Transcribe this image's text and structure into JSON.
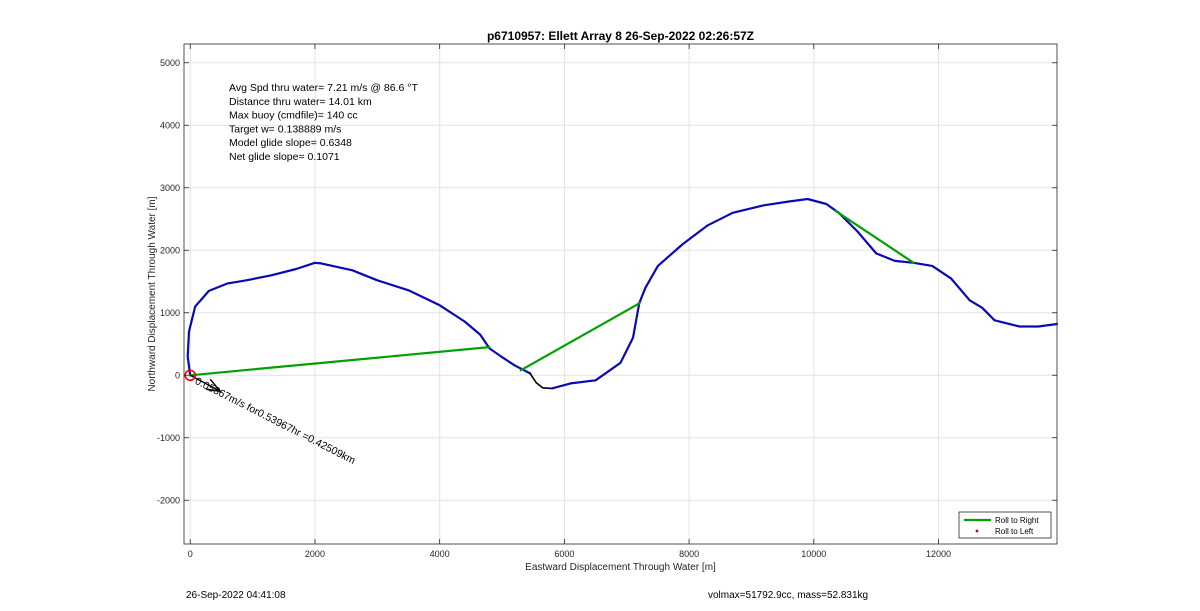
{
  "chart_data": {
    "type": "line",
    "title": "p6710957: Ellett Array 8 26-Sep-2022 02:26:57Z",
    "xlabel": "Eastward Displacement Through Water [m]",
    "ylabel": "Northward Displacement Through Water [m]",
    "xlim": [
      -100,
      13900
    ],
    "ylim": [
      -2700,
      5300
    ],
    "xticks": [
      0,
      2000,
      4000,
      6000,
      8000,
      10000,
      12000
    ],
    "xtick_labels": [
      "0",
      "2000",
      "4000",
      "6000",
      "8000",
      "10000",
      "12000"
    ],
    "yticks": [
      -2000,
      -1000,
      0,
      1000,
      2000,
      3000,
      4000,
      5000
    ],
    "ytick_labels": [
      "-2000",
      "-1000",
      "0",
      "1000",
      "2000",
      "3000",
      "4000",
      "5000"
    ],
    "grid": true,
    "legend_position": "bottom-right",
    "legend": [
      {
        "label": "Roll to Right",
        "color": "#00a000",
        "marker": "line"
      },
      {
        "label": "Roll to Left",
        "color": "#cc0000",
        "marker": "dot"
      }
    ],
    "stats": [
      "Avg Spd thru water=  7.21 m/s @  86.6 °T",
      "Distance thru water= 14.01 km",
      "Max buoy (cmdfile)= 140 cc",
      "Target w= 0.138889 m/s",
      "Model glide slope= 0.6348",
      "Net glide slope= 0.1071"
    ],
    "current_annotation": "0.05867m/s for0.53967hr =0.42509km",
    "series": [
      {
        "style": "track",
        "color": "#0a0ab4",
        "x": [
          0,
          -40,
          -20,
          80,
          300,
          600,
          900,
          1300,
          1700,
          2000,
          2100,
          2600,
          3000,
          3500,
          4000,
          4400,
          4650,
          4800,
          5000,
          5200,
          5450
        ],
        "y": [
          0,
          300,
          700,
          1100,
          1350,
          1470,
          1520,
          1600,
          1700,
          1800,
          1790,
          1680,
          1520,
          1360,
          1120,
          860,
          650,
          430,
          290,
          160,
          30
        ]
      },
      {
        "style": "dive",
        "color": "#000000",
        "x": [
          5450,
          5550,
          5650,
          5800
        ],
        "y": [
          30,
          -120,
          -200,
          -210
        ]
      },
      {
        "style": "track",
        "color": "#0a0ab4",
        "x": [
          5800,
          6100,
          6500,
          6900,
          7100,
          7200,
          7300,
          7500,
          7900,
          8300,
          8700,
          9200,
          9600,
          9900,
          10200,
          10400,
          10700,
          11000,
          11300,
          11600,
          11900,
          12200,
          12500,
          12700,
          12900,
          13300,
          13600,
          13900
        ],
        "y": [
          -210,
          -130,
          -80,
          200,
          600,
          1150,
          1400,
          1750,
          2100,
          2400,
          2600,
          2720,
          2780,
          2820,
          2740,
          2600,
          2300,
          1950,
          1830,
          1800,
          1750,
          1550,
          1200,
          1080,
          880,
          780,
          780,
          820
        ]
      },
      {
        "style": "roll-right",
        "color": "#00a000",
        "x": [
          0,
          4800
        ],
        "y": [
          0,
          450
        ]
      },
      {
        "style": "roll-right",
        "color": "#00a000",
        "x": [
          5300,
          7200
        ],
        "y": [
          80,
          1150
        ]
      },
      {
        "style": "roll-right",
        "color": "#00a000",
        "x": [
          10350,
          11600
        ],
        "y": [
          2630,
          1800
        ]
      }
    ],
    "start_marker": {
      "x": 0,
      "y": 0,
      "color": "#ff0000"
    }
  },
  "footer": {
    "timestamp": "26-Sep-2022 04:41:08",
    "volmass": "volmax=51792.9cc, mass=52.831kg"
  }
}
